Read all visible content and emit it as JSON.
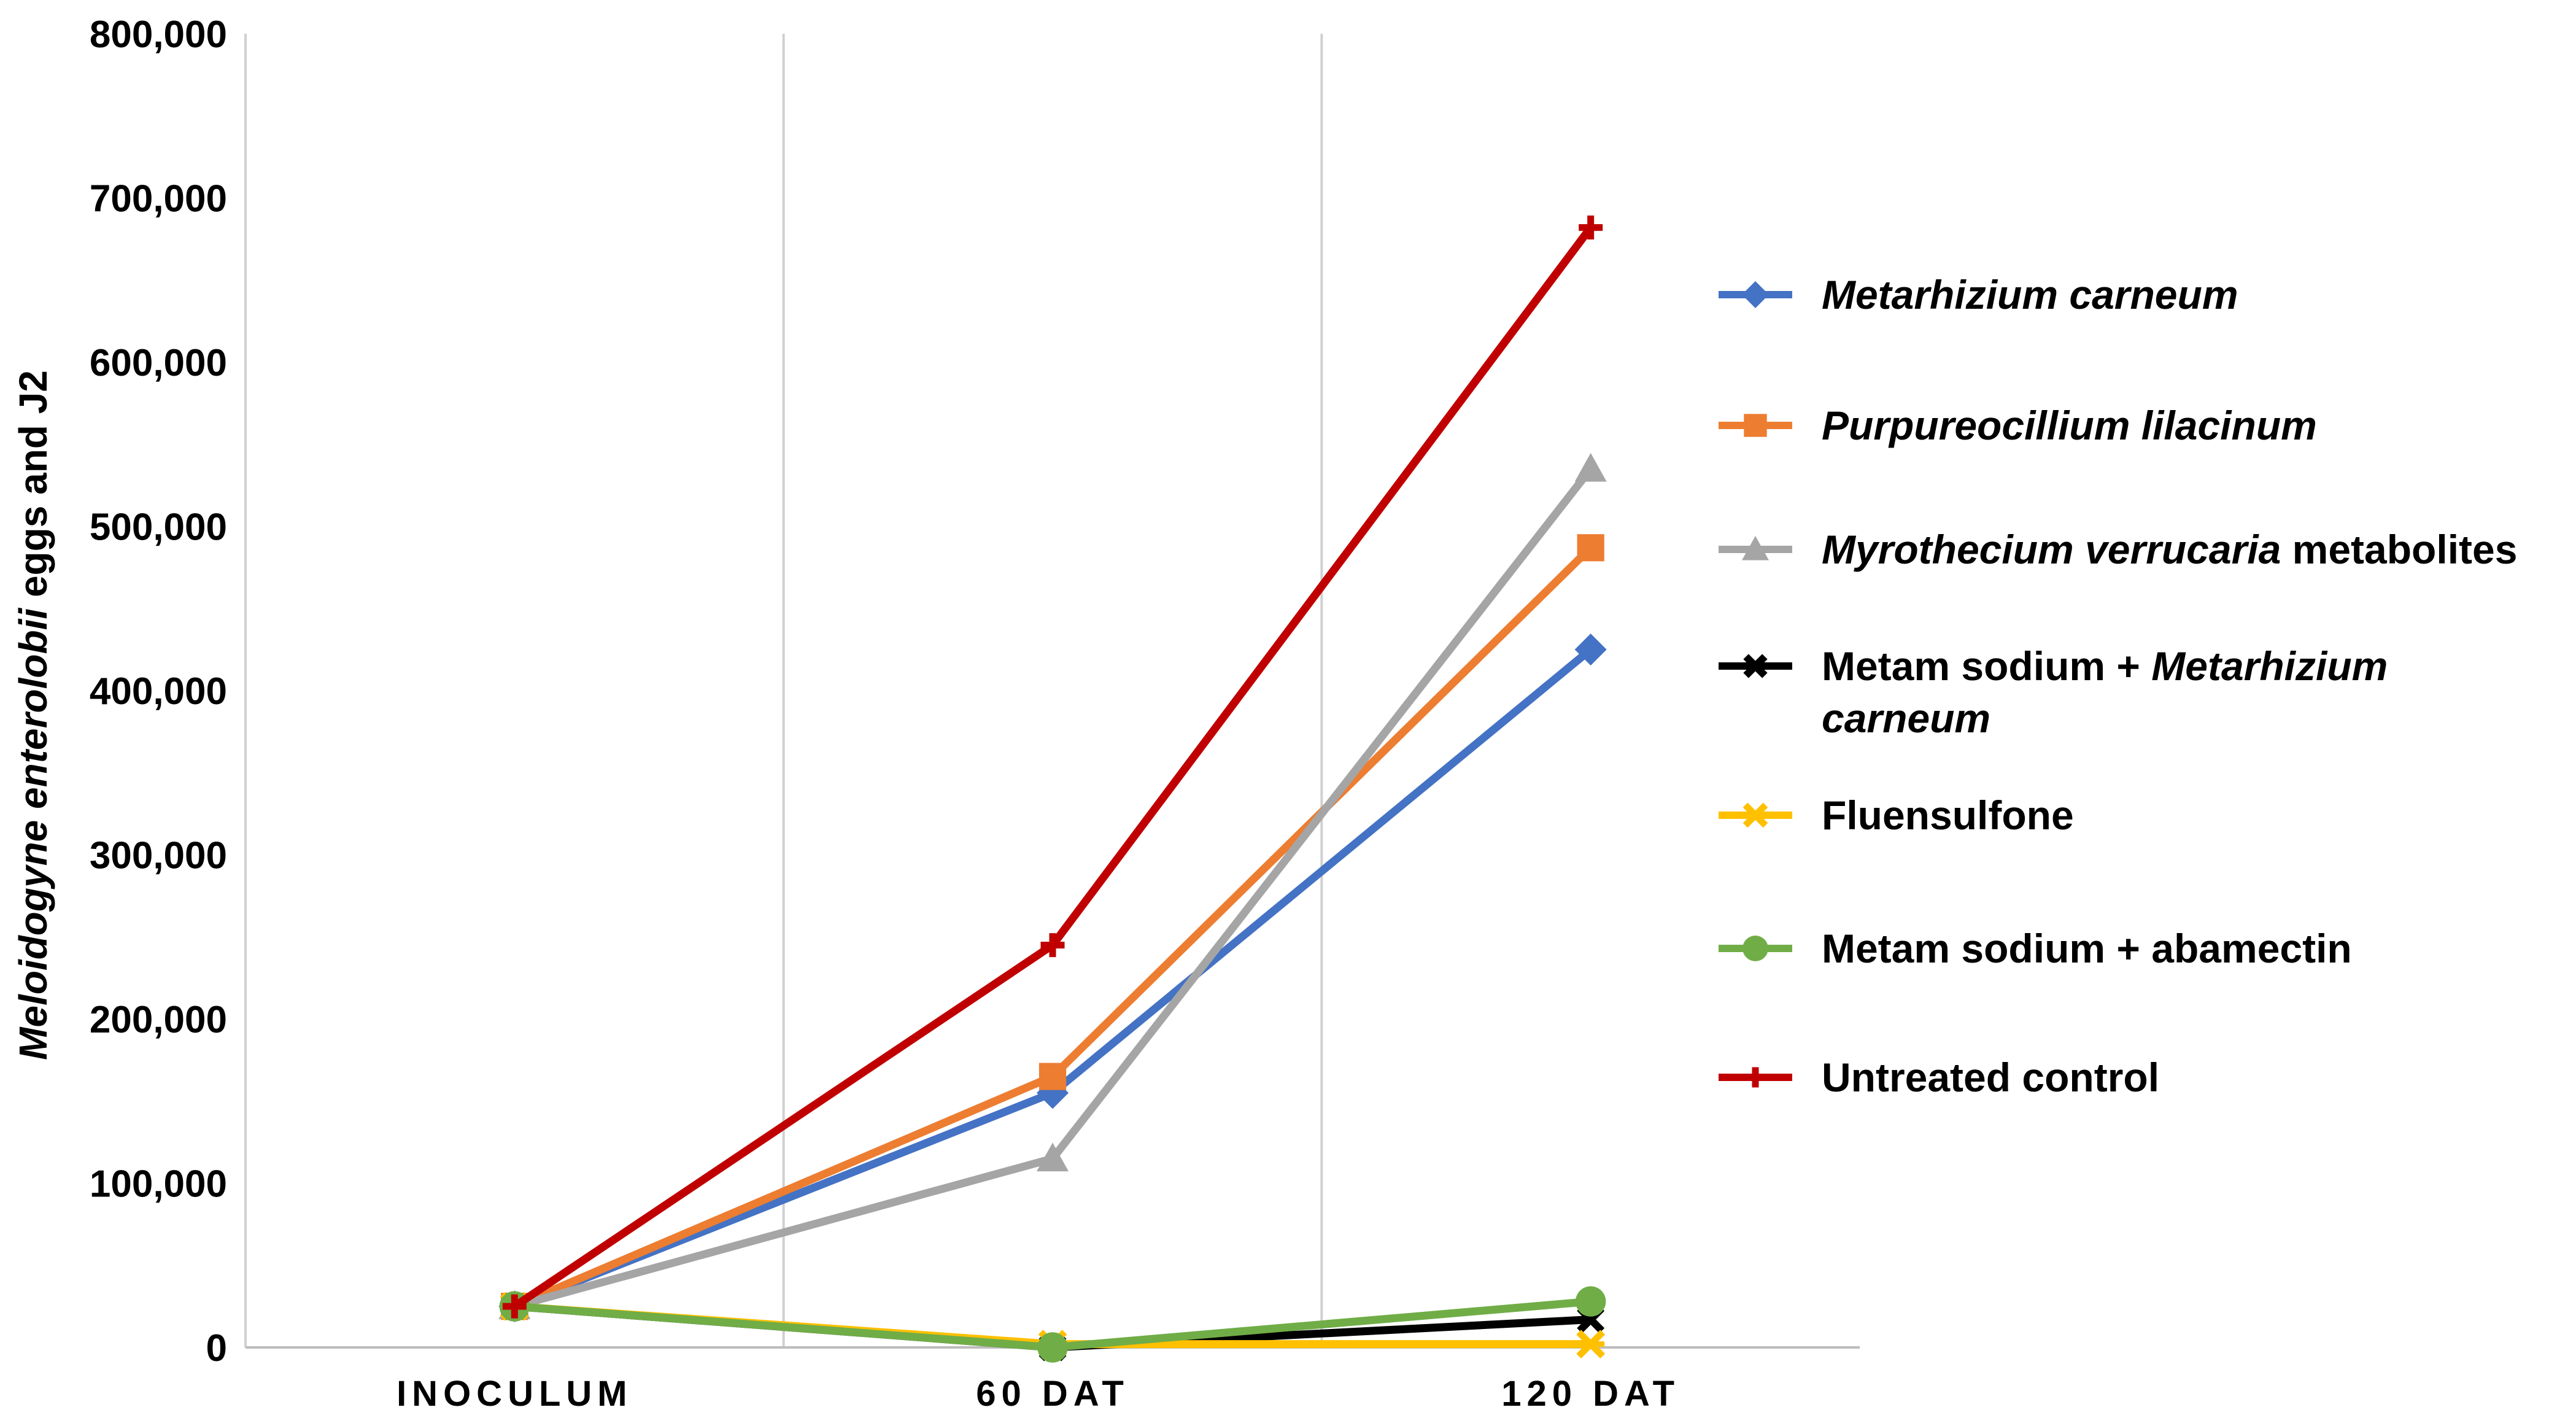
{
  "chart_data": {
    "type": "line",
    "categories": [
      "INOCULUM",
      "60 DAT",
      "120 DAT"
    ],
    "ylabel_parts": [
      {
        "text": "Meloidogyne enterolobii",
        "italic": true
      },
      {
        "text": " eggs and J2",
        "italic": false
      }
    ],
    "ylim": [
      0,
      800000
    ],
    "yticks": [
      0,
      100000,
      200000,
      300000,
      400000,
      500000,
      600000,
      700000,
      800000
    ],
    "ytick_labels": [
      "0",
      "100,000",
      "200,000",
      "300,000",
      "400,000",
      "500,000",
      "600,000",
      "700,000",
      "800,000"
    ],
    "grid": {
      "vertical": true,
      "horizontal": false
    },
    "legend_position": "right",
    "series": [
      {
        "name_parts": [
          {
            "text": "Metarhizium  carneum",
            "italic": true
          }
        ],
        "values": [
          25000,
          155000,
          425000
        ],
        "color": "#4472C4",
        "marker": "diamond"
      },
      {
        "name_parts": [
          {
            "text": "Purpureocillium  lilacinum",
            "italic": true
          }
        ],
        "values": [
          25000,
          165000,
          487000
        ],
        "color": "#ED7D31",
        "marker": "square"
      },
      {
        "name_parts": [
          {
            "text": "Myrothecium verrucaria",
            "italic": true
          },
          {
            "text": " metabolites",
            "italic": false
          }
        ],
        "values": [
          25000,
          115000,
          535000
        ],
        "color": "#A5A5A5",
        "marker": "triangle"
      },
      {
        "name_parts": [
          {
            "text": "Metam sodium + ",
            "italic": false
          },
          {
            "text": "Metarhizium",
            "italic": true
          },
          {
            "text": "\ncarneum",
            "italic": true
          }
        ],
        "values": [
          25000,
          0,
          17000
        ],
        "color": "#000000",
        "marker": "x"
      },
      {
        "name_parts": [
          {
            "text": "Fluensulfone",
            "italic": false
          }
        ],
        "values": [
          25000,
          2000,
          2000
        ],
        "color": "#FFC000",
        "marker": "star"
      },
      {
        "name_parts": [
          {
            "text": "Metam sodium + abamectin",
            "italic": false
          }
        ],
        "values": [
          25000,
          0,
          28000
        ],
        "color": "#70AD47",
        "marker": "circle"
      },
      {
        "name_parts": [
          {
            "text": "Untreated control",
            "italic": false
          }
        ],
        "values": [
          25000,
          245000,
          682000
        ],
        "color": "#C00000",
        "marker": "plus"
      }
    ]
  }
}
